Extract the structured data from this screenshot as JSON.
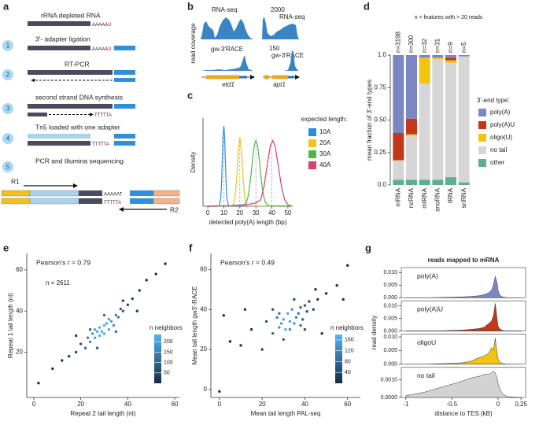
{
  "schematic": {
    "panel": "a",
    "rows": [
      {
        "label": "rRNA depleted RNA",
        "tail": "AAAAA",
        "end": "U"
      },
      {
        "step": "1",
        "label": "3'- adapter ligation",
        "tail": "AAAAA",
        "end": "U"
      },
      {
        "step": "2",
        "label": "RT-PCR"
      },
      {
        "step": "3",
        "label": "second strand DNA synthesis",
        "tail": "TTTTT",
        "end": "A"
      },
      {
        "step": "4",
        "label": "Tn5 loaded with one adapter",
        "tail": "TTTTT",
        "end": "A"
      },
      {
        "step": "5",
        "label": "PCR and Illumina sequencing",
        "tail_top": "AAAAAT",
        "tail": "TTTTT",
        "end": "A",
        "read1": "R1",
        "read2": "R2"
      }
    ]
  },
  "coverage": {
    "panel": "b",
    "ylabel": "read coverage",
    "scales": [
      "2000",
      "150"
    ],
    "genes": [
      {
        "name": "etd1",
        "tracks": [
          "RNA-seq",
          "gw-3'RACE"
        ]
      },
      {
        "name": "apt1",
        "tracks": [
          "RNA-seq",
          "gw-3'RACE"
        ]
      }
    ]
  },
  "chart_data": [
    {
      "type": "line",
      "panel": "c",
      "ylabel": "Density",
      "xlabel": "detected poly(A) length (bp)",
      "legend_title": "expected length:",
      "legend": "right",
      "xlim": [
        -3,
        53
      ],
      "xticks": [
        0,
        10,
        20,
        30,
        40,
        50
      ],
      "ylim": [
        0,
        1.1
      ],
      "series": [
        {
          "name": "10A",
          "color": "#2a8fd6",
          "expected_length": 10,
          "x": [
            0,
            6,
            7,
            8,
            8.5,
            9,
            9.5,
            10,
            10.5,
            11,
            11.5,
            12,
            13,
            14,
            52
          ],
          "values": [
            0,
            0,
            0.004,
            0.085,
            0.25,
            0.54,
            0.86,
            1,
            0.86,
            0.54,
            0.25,
            0.085,
            0.004,
            0,
            0
          ]
        },
        {
          "name": "20A",
          "color": "#f0c419",
          "expected_length": 20,
          "x": [
            0,
            15,
            16,
            17,
            18,
            19,
            20,
            21,
            22,
            23,
            24,
            25,
            52
          ],
          "values": [
            0,
            0.004,
            0.024,
            0.12,
            0.35,
            0.69,
            0.86,
            0.69,
            0.35,
            0.12,
            0.024,
            0.004,
            0
          ]
        },
        {
          "name": "30A",
          "color": "#4cb848",
          "expected_length": 30,
          "x": [
            0,
            22,
            24,
            25,
            26,
            27,
            28,
            29,
            30,
            31,
            32,
            33,
            34,
            35,
            36,
            38,
            52
          ],
          "values": [
            0,
            0.005,
            0.046,
            0.11,
            0.23,
            0.4,
            0.6,
            0.76,
            0.82,
            0.76,
            0.6,
            0.4,
            0.23,
            0.11,
            0.046,
            0.005,
            0
          ]
        },
        {
          "name": "40A",
          "color": "#d9416e",
          "expected_length": 40,
          "x": [
            0,
            14,
            20,
            26,
            30,
            33,
            35,
            37,
            39,
            40.5,
            42,
            44,
            46,
            48,
            50,
            52
          ],
          "values": [
            0,
            0.005,
            0.015,
            0.025,
            0.04,
            0.08,
            0.24,
            0.5,
            0.75,
            0.82,
            0.75,
            0.5,
            0.24,
            0.08,
            0.02,
            0.003
          ]
        }
      ]
    },
    {
      "type": "bar",
      "stacked": true,
      "panel": "d",
      "title": "n = features with > 20 reads",
      "ylabel": "mean fraction of 3'-end types",
      "legend_title": "3'-end type:",
      "legend": "right",
      "categories": [
        "mRNA",
        "ncRNA",
        "mtRNA",
        "snoRNA",
        "tRNA",
        "snRNA"
      ],
      "annotations": [
        "n=3198",
        "n=300",
        "n=32",
        "n=31",
        "n=9",
        "n=5"
      ],
      "ylim": [
        0,
        1
      ],
      "yticks": [
        {
          "value": 0,
          "label": "0.0"
        },
        0.25,
        {
          "value": 0.5,
          "label": "0.50"
        },
        0.75,
        {
          "value": 1,
          "label": "1.0"
        }
      ],
      "series": [
        {
          "name": "poly(A)",
          "color": "#7b86c2",
          "values": [
            0.6,
            0.49,
            0.02,
            0.02,
            0.02,
            0.01
          ]
        },
        {
          "name": "poly(A)U",
          "color": "#c0391b",
          "values": [
            0.21,
            0.12,
            0,
            0,
            0.02,
            0
          ]
        },
        {
          "name": "oligo(U)",
          "color": "#f2c40f",
          "values": [
            0,
            0.01,
            0.2,
            0.01,
            0.02,
            0
          ]
        },
        {
          "name": "no tail",
          "color": "#d6d6d6",
          "values": [
            0.15,
            0.34,
            0.74,
            0.93,
            0.88,
            0.97
          ]
        },
        {
          "name": "other",
          "color": "#5fae8f",
          "values": [
            0.04,
            0.04,
            0.04,
            0.04,
            0.06,
            0.02
          ]
        }
      ]
    },
    {
      "type": "scatter",
      "panel": "e",
      "annotation": "Pearson's r = 0.79",
      "n_label": "n = 2611",
      "xlabel": "Repeat 2 tail length (nt)",
      "ylabel": "Repeat 1 tail length (nt)",
      "xlim": [
        -3,
        62
      ],
      "xticks": [
        0,
        20,
        40,
        60
      ],
      "ylim": [
        -2,
        68
      ],
      "yticks": [
        20,
        40,
        60
      ],
      "x": [
        2,
        8,
        12,
        15,
        18,
        20,
        22,
        23,
        24,
        25,
        26,
        26,
        27,
        28,
        28,
        29,
        30,
        30,
        31,
        32,
        32,
        33,
        34,
        35,
        36,
        37,
        38,
        40,
        42,
        45,
        48,
        52,
        56,
        18,
        35,
        27,
        30,
        24,
        38,
        44
      ],
      "values": [
        5,
        12,
        16,
        18,
        20,
        24,
        22,
        27,
        25,
        29,
        27,
        31,
        30,
        28,
        32,
        30,
        33,
        29,
        34,
        31,
        36,
        35,
        33,
        38,
        37,
        41,
        40,
        43,
        46,
        50,
        55,
        58,
        63,
        28,
        30,
        22,
        38,
        31,
        45,
        40
      ],
      "neighbors": [
        10,
        15,
        20,
        30,
        50,
        80,
        110,
        140,
        160,
        180,
        200,
        210,
        220,
        225,
        215,
        220,
        230,
        225,
        215,
        210,
        200,
        190,
        170,
        150,
        130,
        110,
        90,
        60,
        40,
        25,
        15,
        10,
        8,
        40,
        120,
        90,
        110,
        100,
        50,
        30
      ],
      "colorbar": {
        "title": "n neighbors",
        "lim": [
          0,
          235
        ],
        "ticks": [
          50,
          100,
          150,
          200
        ],
        "colors": [
          "#132b43",
          "#56b1f7"
        ]
      }
    },
    {
      "type": "scatter",
      "panel": "f",
      "annotation": "Pearson's r = 0.49",
      "xlabel": "Mean tail length PAL-seq",
      "ylabel": "Mean tail length gw3'-RACE",
      "xlim": [
        -4,
        66
      ],
      "xticks": [
        0,
        20,
        40,
        60
      ],
      "ylim": [
        -4,
        68
      ],
      "yticks": [
        0,
        20,
        40,
        60
      ],
      "x": [
        0,
        2,
        5,
        10,
        15,
        20,
        22,
        25,
        27,
        28,
        29,
        30,
        31,
        32,
        33,
        34,
        35,
        36,
        37,
        38,
        39,
        40,
        41,
        42,
        44,
        46,
        50,
        55,
        58,
        25,
        30,
        35,
        40,
        45,
        28,
        33,
        38,
        60,
        12,
        48
      ],
      "values": [
        -1,
        37,
        24,
        22,
        30,
        20,
        34,
        28,
        36,
        31,
        33,
        35,
        30,
        38,
        34,
        40,
        33,
        36,
        38,
        41,
        35,
        42,
        39,
        44,
        40,
        45,
        48,
        52,
        45,
        40,
        25,
        45,
        30,
        50,
        38,
        30,
        32,
        62,
        40,
        28
      ],
      "neighbors": [
        5,
        5,
        5,
        8,
        15,
        30,
        50,
        80,
        110,
        130,
        145,
        160,
        165,
        160,
        150,
        140,
        130,
        120,
        100,
        90,
        80,
        70,
        60,
        50,
        35,
        25,
        15,
        8,
        5,
        60,
        70,
        50,
        40,
        20,
        100,
        120,
        90,
        5,
        10,
        15
      ],
      "colorbar": {
        "title": "n neighbors",
        "lim": [
          0,
          180
        ],
        "ticks": [
          40,
          80,
          120,
          160
        ],
        "colors": [
          "#132b43",
          "#56b1f7"
        ]
      }
    },
    {
      "type": "area",
      "panel": "g",
      "title": "reads mapped to mRNA",
      "xlabel": "distance to TES (kB)",
      "ylabel": "read density",
      "xlim": [
        -1.05,
        0.3
      ],
      "xticks": [
        -1,
        -0.5,
        0,
        0.25
      ],
      "x": [
        -1,
        -0.8,
        -0.6,
        -0.4,
        -0.3,
        -0.2,
        -0.15,
        -0.1,
        -0.07,
        -0.05,
        -0.03,
        -0.01,
        0,
        0.02,
        0.05,
        0.1,
        0.25
      ],
      "series": [
        {
          "name": "poly(A)",
          "color": "#7b86c2",
          "ylim": [
            0,
            0.012
          ],
          "yticks": [
            {
              "value": 0,
              "label": "0.000"
            },
            0.005,
            {
              "value": 0.01,
              "label": "0.010"
            }
          ],
          "values": [
            0,
            0,
            0.0001,
            0.0003,
            0.0005,
            0.0008,
            0.0012,
            0.002,
            0.003,
            0.005,
            0.0085,
            0.006,
            0.003,
            0.001,
            0.0003,
            0,
            0
          ]
        },
        {
          "name": "poly(A)U",
          "color": "#c0391b",
          "ylim": [
            0,
            0.012
          ],
          "yticks": [
            {
              "value": 0,
              "label": "0.000"
            },
            0.005,
            {
              "value": 0.01,
              "label": "0.010"
            }
          ],
          "values": [
            0,
            0,
            0.0001,
            0.0003,
            0.0006,
            0.001,
            0.0015,
            0.003,
            0.004,
            0.006,
            0.011,
            0.005,
            0.002,
            0.0008,
            0.0002,
            0,
            0
          ]
        },
        {
          "name": "oligoU",
          "color": "#f2c40f",
          "ylim": [
            0,
            0.011
          ],
          "yticks": [
            {
              "value": 0,
              "label": "0.000"
            },
            0.005,
            {
              "value": 0.01,
              "label": "0.010"
            }
          ],
          "values": [
            0,
            0,
            0.0002,
            0.0005,
            0.001,
            0.0025,
            0.003,
            0.004,
            0.006,
            0.005,
            0.0095,
            0.004,
            0.002,
            0.0008,
            0.0002,
            0,
            0
          ]
        },
        {
          "name": "no tail",
          "color": "#d3d3d3",
          "ylim": [
            0,
            0.0017
          ],
          "yticks": [
            {
              "value": 0,
              "label": "0.0000"
            },
            {
              "value": 0.001,
              "label": "0.0010"
            }
          ],
          "values": [
            0.0001,
            0.0003,
            0.0006,
            0.0009,
            0.0011,
            0.0012,
            0.0013,
            0.0013,
            0.0014,
            0.0015,
            0.0014,
            0.0011,
            0.0008,
            0.0005,
            0.0002,
            5e-05,
            0
          ]
        }
      ]
    }
  ]
}
